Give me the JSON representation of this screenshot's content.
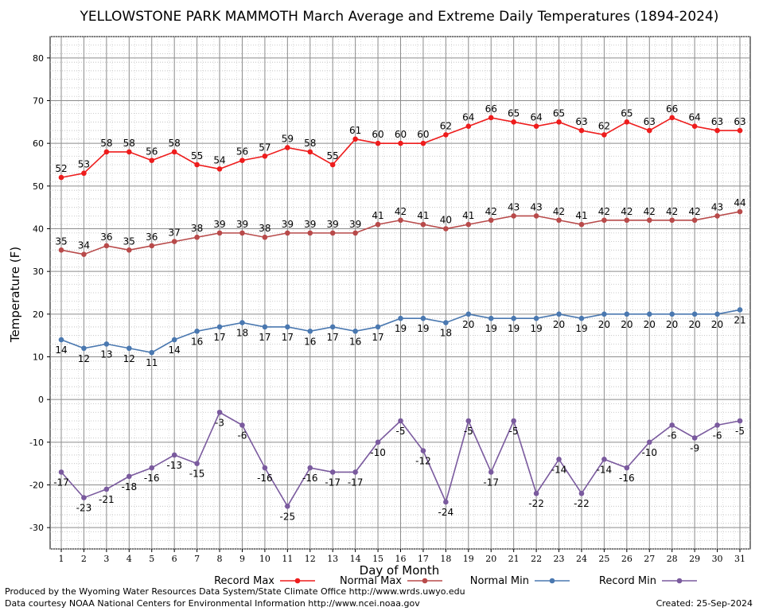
{
  "chart_data": {
    "type": "line",
    "title": "YELLOWSTONE PARK MAMMOTH March Average and Extreme Daily Temperatures (1894-2024)",
    "xlabel": "Day of Month",
    "ylabel": "Temperature (F)",
    "x": [
      1,
      2,
      3,
      4,
      5,
      6,
      7,
      8,
      9,
      10,
      11,
      12,
      13,
      14,
      15,
      16,
      17,
      18,
      19,
      20,
      21,
      22,
      23,
      24,
      25,
      26,
      27,
      28,
      29,
      30,
      31
    ],
    "ylim": [
      -35,
      85
    ],
    "yticks": [
      -30,
      -20,
      -10,
      0,
      10,
      20,
      30,
      40,
      50,
      60,
      70,
      80
    ],
    "grid": true,
    "legend_position": "bottom",
    "series": [
      {
        "name": "Record Max",
        "color": "#ee1c1c",
        "label_position": "above",
        "values": [
          52,
          53,
          58,
          58,
          56,
          58,
          55,
          54,
          56,
          57,
          59,
          58,
          55,
          61,
          60,
          60,
          60,
          62,
          64,
          66,
          65,
          64,
          65,
          63,
          62,
          65,
          63,
          66,
          64,
          63,
          63
        ]
      },
      {
        "name": "Normal Max",
        "color": "#b84a4a",
        "label_position": "above",
        "values": [
          35,
          34,
          36,
          35,
          36,
          37,
          38,
          39,
          39,
          38,
          39,
          39,
          39,
          39,
          41,
          42,
          41,
          40,
          41,
          42,
          43,
          43,
          42,
          41,
          42,
          42,
          42,
          42,
          42,
          43,
          44
        ]
      },
      {
        "name": "Normal Min",
        "color": "#4a78b0",
        "label_position": "below",
        "values": [
          14,
          12,
          13,
          12,
          11,
          14,
          16,
          17,
          18,
          17,
          17,
          16,
          17,
          16,
          17,
          19,
          19,
          18,
          20,
          19,
          19,
          19,
          20,
          19,
          20,
          20,
          20,
          20,
          20,
          20,
          21
        ]
      },
      {
        "name": "Record Min",
        "color": "#7a5a9e",
        "label_position": "below",
        "values": [
          -17,
          -23,
          -21,
          -18,
          -16,
          -13,
          -15,
          -3,
          -6,
          -16,
          -25,
          -16,
          -17,
          -17,
          -10,
          -5,
          -12,
          -24,
          -5,
          -17,
          -5,
          -22,
          -14,
          -22,
          -14,
          -16,
          -10,
          -6,
          -9,
          -6,
          -5
        ]
      }
    ]
  },
  "credits": {
    "produced_by": "Produced by the Wyoming Water Resources Data System/State Climate Office http://www.wrds.uwyo.edu",
    "data_courtesy": "Data courtesy NOAA National Centers for Environmental Information http://www.ncei.noaa.gov",
    "created": "Created:  25-Sep-2024"
  }
}
